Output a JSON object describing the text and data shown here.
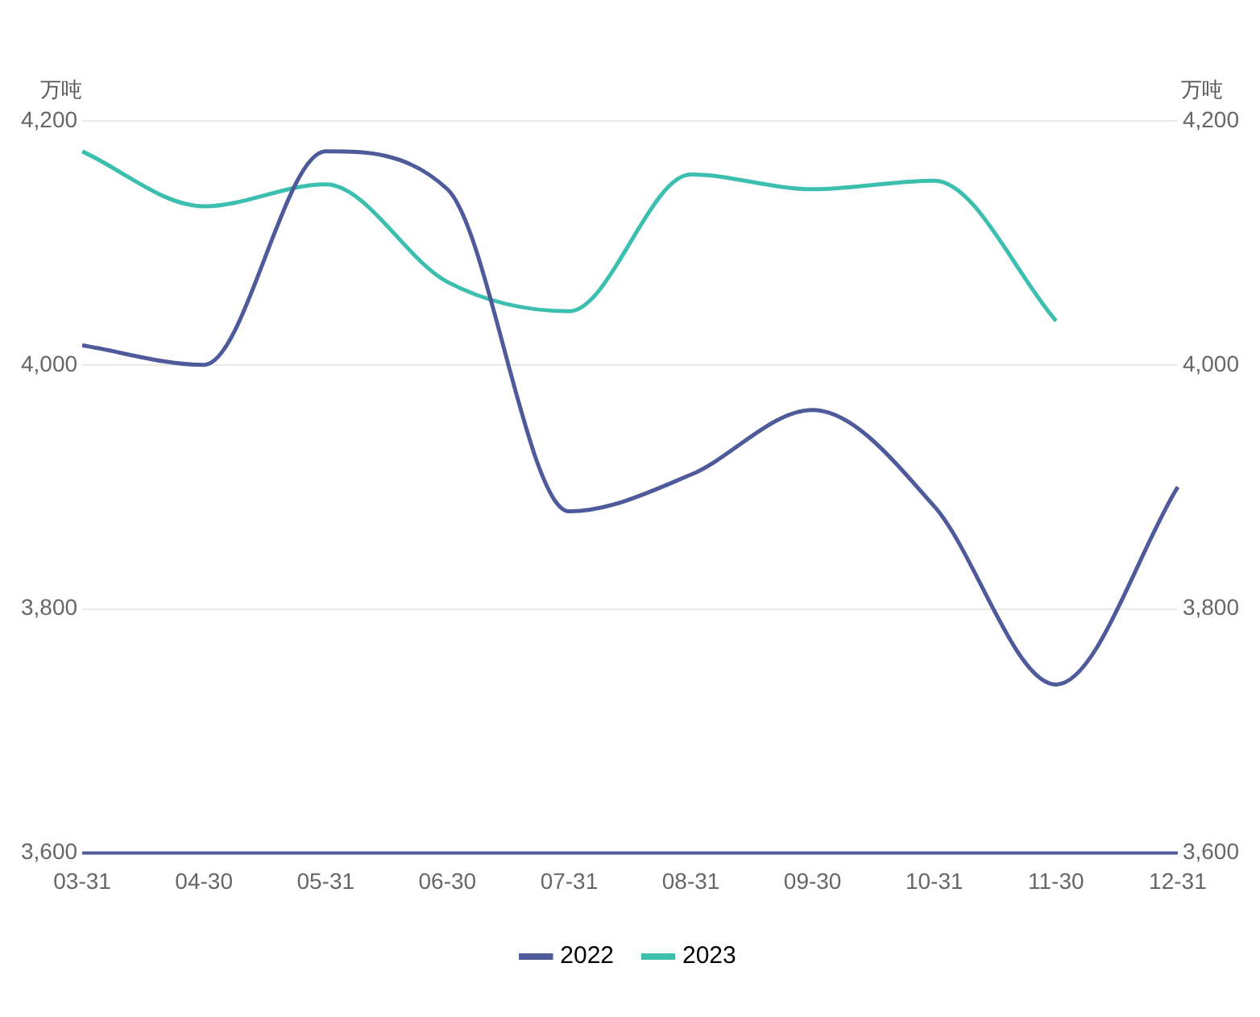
{
  "chart_data": {
    "type": "line",
    "ylabel": "万吨",
    "y2label": "万吨",
    "categories": [
      "03-31",
      "04-30",
      "05-31",
      "06-30",
      "07-31",
      "08-31",
      "09-30",
      "10-31",
      "11-30",
      "12-31"
    ],
    "series": [
      {
        "name": "2022",
        "color": "#4e5a9a",
        "values": [
          4016,
          4000,
          4175,
          4144,
          3880,
          3910,
          3963,
          3884,
          3738,
          3900
        ]
      },
      {
        "name": "2023",
        "color": "#3dbfb0",
        "values": [
          4175,
          4130,
          4148,
          4068,
          4044,
          4156,
          4144,
          4151,
          4036,
          null
        ]
      }
    ],
    "ylim": [
      3600,
      4200
    ],
    "yticks": [
      {
        "value": 3600,
        "label": "3,600"
      },
      {
        "value": 3800,
        "label": "3,800"
      },
      {
        "value": 4000,
        "label": "4,000"
      },
      {
        "value": 4200,
        "label": "4,200"
      }
    ],
    "y2lim": [
      3600,
      4200
    ],
    "y2ticks": [
      {
        "value": 3600,
        "label": "3,600"
      },
      {
        "value": 3800,
        "label": "3,800"
      },
      {
        "value": 4000,
        "label": "4,000"
      },
      {
        "value": 4200,
        "label": "4,200"
      }
    ],
    "grid": "y",
    "legend": "bottom",
    "marker": "none",
    "line_style": "solid"
  }
}
